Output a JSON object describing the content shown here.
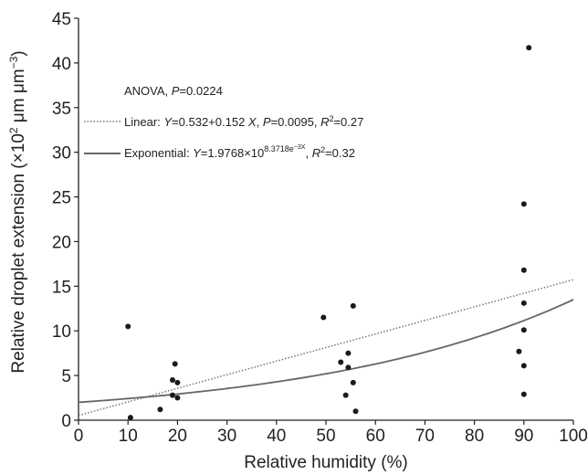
{
  "chart_data": {
    "type": "scatter",
    "xlabel": "Relative humidity (%)",
    "ylabel_parts": {
      "pre": "Relative droplet extension (×10",
      "exp1": "2",
      "mid": " μm μm",
      "exp2": "−3",
      "post": ")"
    },
    "xlim": [
      0,
      100
    ],
    "ylim": [
      0,
      45
    ],
    "xticks": [
      0,
      10,
      20,
      30,
      40,
      50,
      60,
      70,
      80,
      90,
      100
    ],
    "yticks": [
      0,
      5,
      10,
      15,
      20,
      25,
      30,
      35,
      40,
      45
    ],
    "grid": false,
    "points": [
      {
        "x": 10,
        "y": 10.5
      },
      {
        "x": 10.5,
        "y": 0.3
      },
      {
        "x": 16.5,
        "y": 1.2
      },
      {
        "x": 19,
        "y": 4.5
      },
      {
        "x": 19,
        "y": 2.8
      },
      {
        "x": 19.5,
        "y": 6.3
      },
      {
        "x": 20,
        "y": 4.2
      },
      {
        "x": 20,
        "y": 2.5
      },
      {
        "x": 49.5,
        "y": 11.5
      },
      {
        "x": 53,
        "y": 6.5
      },
      {
        "x": 54,
        "y": 2.8
      },
      {
        "x": 54.5,
        "y": 7.5
      },
      {
        "x": 54.5,
        "y": 5.9
      },
      {
        "x": 55.5,
        "y": 12.8
      },
      {
        "x": 55.5,
        "y": 4.2
      },
      {
        "x": 56,
        "y": 1.0
      },
      {
        "x": 89,
        "y": 7.7
      },
      {
        "x": 90,
        "y": 24.2
      },
      {
        "x": 90,
        "y": 16.8
      },
      {
        "x": 90,
        "y": 13.1
      },
      {
        "x": 90,
        "y": 10.1
      },
      {
        "x": 90,
        "y": 6.1
      },
      {
        "x": 90,
        "y": 2.9
      },
      {
        "x": 91,
        "y": 41.7
      }
    ],
    "linear_fit": {
      "intercept": 0.532,
      "slope": 0.152,
      "style": "dotted"
    },
    "exponential_fit": {
      "start": [
        0,
        2.0
      ],
      "end": [
        100,
        13.5
      ],
      "style": "solid"
    },
    "annotations": {
      "anova": {
        "prefix": "ANOVA, ",
        "pvar": "P",
        "rest": "=0.0224"
      },
      "linear": {
        "lead": "Linear: ",
        "yvar": "Y",
        "eq": "=0.532+0.152 ",
        "xvar": "X",
        "sep": ", ",
        "pvar": "P",
        "pval": "=0.0095, ",
        "rvar": "R",
        "rexp": "2",
        "rval": "=0.27"
      },
      "exponential": {
        "lead": "Exponential: ",
        "yvar": "Y",
        "eq": "=1.9768×10",
        "exp_base": "8.3718e",
        "exp_sup": "−3X",
        "sep": ", ",
        "rvar": "R",
        "rexp": "2",
        "rval": "=0.32"
      }
    },
    "colors": {
      "points": "#1a1a1a",
      "axes": "#222222",
      "linear": "#777777",
      "exponential": "#666666"
    }
  }
}
